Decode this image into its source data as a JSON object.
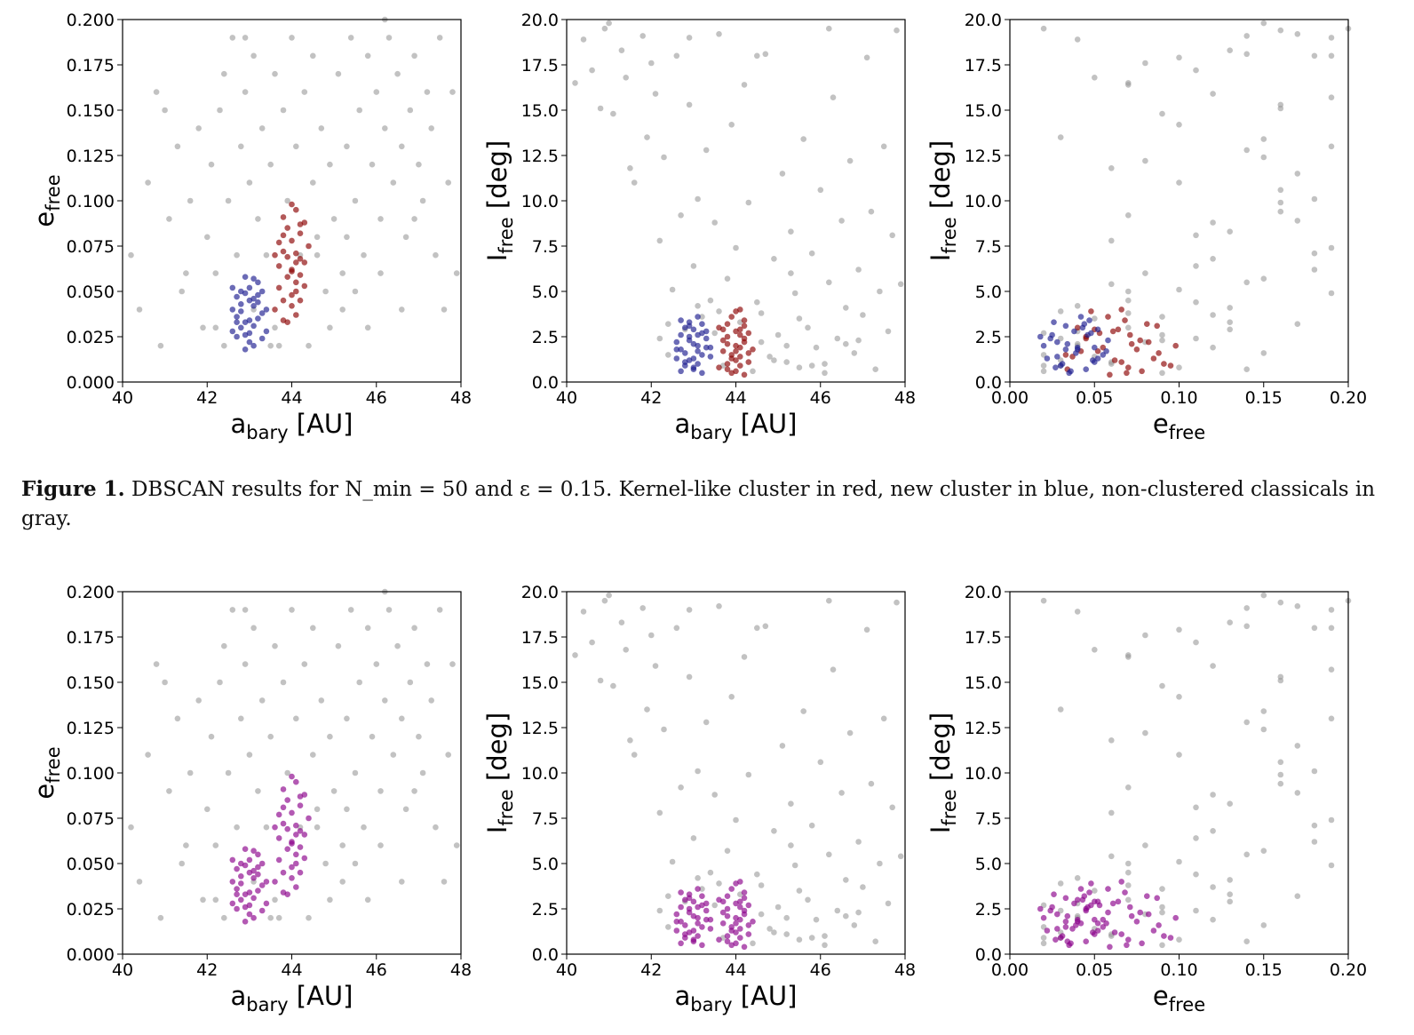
{
  "caption": {
    "label": "Figure 1.",
    "text": "DBSCAN results for N_min = 50 and ε = 0.15. Kernel-like cluster in red, new cluster in blue, non-clustered classicals in gray."
  },
  "colors": {
    "gray": "#9a9a9a",
    "kernel": "#8b0000",
    "new": "#1c1c8f",
    "combined": "#8b008b"
  },
  "chart_data": {
    "type": "scatter",
    "grid": false,
    "variables": {
      "a": "a_bary [AU]",
      "e": "e_free",
      "i": "I_free [deg]"
    },
    "panels": [
      {
        "row": "top",
        "x": "a",
        "y": "e",
        "xlabel": "a",
        "xsub": "bary",
        "xunit": " [AU]",
        "ylabel": "e",
        "ysub": "free",
        "yunit": "",
        "xlim": [
          40,
          48
        ],
        "ylim": [
          0,
          0.2
        ],
        "xticks": [
          "40",
          "42",
          "44",
          "46",
          "48"
        ],
        "yticks": [
          "0.000",
          "0.025",
          "0.050",
          "0.075",
          "0.100",
          "0.125",
          "0.150",
          "0.175",
          "0.200"
        ]
      },
      {
        "row": "top",
        "x": "a",
        "y": "i",
        "xlabel": "a",
        "xsub": "bary",
        "xunit": " [AU]",
        "ylabel": "I",
        "ysub": "free",
        "yunit": " [deg]",
        "xlim": [
          40,
          48
        ],
        "ylim": [
          0,
          20
        ],
        "xticks": [
          "40",
          "42",
          "44",
          "46",
          "48"
        ],
        "yticks": [
          "0.0",
          "2.5",
          "5.0",
          "7.5",
          "10.0",
          "12.5",
          "15.0",
          "17.5",
          "20.0"
        ]
      },
      {
        "row": "top",
        "x": "e",
        "y": "i",
        "xlabel": "e",
        "xsub": "free",
        "xunit": "",
        "ylabel": "I",
        "ysub": "free",
        "yunit": " [deg]",
        "xlim": [
          0,
          0.2
        ],
        "ylim": [
          0,
          20
        ],
        "xticks": [
          "0.00",
          "0.05",
          "0.10",
          "0.15",
          "0.20"
        ],
        "yticks": [
          "0.0",
          "2.5",
          "5.0",
          "7.5",
          "10.0",
          "12.5",
          "15.0",
          "17.5",
          "20.0"
        ]
      },
      {
        "row": "bottom",
        "x": "a",
        "y": "e",
        "xlabel": "a",
        "xsub": "bary",
        "xunit": " [AU]",
        "ylabel": "e",
        "ysub": "free",
        "yunit": "",
        "xlim": [
          40,
          48
        ],
        "ylim": [
          0,
          0.2
        ],
        "xticks": [
          "40",
          "42",
          "44",
          "46",
          "48"
        ],
        "yticks": [
          "0.000",
          "0.025",
          "0.050",
          "0.075",
          "0.100",
          "0.125",
          "0.150",
          "0.175",
          "0.200"
        ]
      },
      {
        "row": "bottom",
        "x": "a",
        "y": "i",
        "xlabel": "a",
        "xsub": "bary",
        "xunit": " [AU]",
        "ylabel": "I",
        "ysub": "free",
        "yunit": " [deg]",
        "xlim": [
          40,
          48
        ],
        "ylim": [
          0,
          20
        ],
        "xticks": [
          "40",
          "42",
          "44",
          "46",
          "48"
        ],
        "yticks": [
          "0.0",
          "2.5",
          "5.0",
          "7.5",
          "10.0",
          "12.5",
          "15.0",
          "17.5",
          "20.0"
        ]
      },
      {
        "row": "bottom",
        "x": "e",
        "y": "i",
        "xlabel": "e",
        "xsub": "free",
        "xunit": "",
        "ylabel": "I",
        "ysub": "free",
        "yunit": " [deg]",
        "xlim": [
          0,
          0.2
        ],
        "ylim": [
          0,
          20
        ],
        "xticks": [
          "0.00",
          "0.05",
          "0.10",
          "0.15",
          "0.20"
        ],
        "yticks": [
          "0.0",
          "2.5",
          "5.0",
          "7.5",
          "10.0",
          "12.5",
          "15.0",
          "17.5",
          "20.0"
        ]
      }
    ],
    "object_fields": [
      "a",
      "e",
      "i",
      "cluster"
    ],
    "clusters": [
      "none",
      "kernel",
      "new"
    ],
    "objects": [
      [
        40.2,
        0.07,
        16.5,
        0
      ],
      [
        40.4,
        0.04,
        18.9,
        0
      ],
      [
        40.6,
        0.11,
        17.2,
        0
      ],
      [
        40.8,
        0.16,
        15.1,
        0
      ],
      [
        40.9,
        0.02,
        19.5,
        0
      ],
      [
        41.1,
        0.09,
        14.8,
        0
      ],
      [
        41.3,
        0.13,
        18.3,
        0
      ],
      [
        41.4,
        0.05,
        16.8,
        0
      ],
      [
        41.6,
        0.1,
        11.0,
        0
      ],
      [
        41.8,
        0.14,
        19.1,
        0
      ],
      [
        41.9,
        0.03,
        13.5,
        0
      ],
      [
        42.0,
        0.08,
        17.6,
        0
      ],
      [
        42.1,
        0.12,
        15.9,
        0
      ],
      [
        42.2,
        0.06,
        7.8,
        0
      ],
      [
        42.3,
        0.15,
        12.4,
        0
      ],
      [
        42.4,
        0.17,
        3.2,
        0
      ],
      [
        42.5,
        0.1,
        5.1,
        0
      ],
      [
        42.6,
        0.19,
        18.0,
        0
      ],
      [
        42.7,
        0.07,
        9.2,
        0
      ],
      [
        42.8,
        0.13,
        2.9,
        0
      ],
      [
        42.9,
        0.16,
        15.3,
        0
      ],
      [
        43.0,
        0.11,
        6.4,
        0
      ],
      [
        43.1,
        0.18,
        10.1,
        0
      ],
      [
        43.2,
        0.09,
        3.6,
        0
      ],
      [
        43.3,
        0.14,
        12.8,
        0
      ],
      [
        43.4,
        0.07,
        4.5,
        0
      ],
      [
        43.5,
        0.12,
        8.8,
        0
      ],
      [
        43.6,
        0.17,
        19.2,
        0
      ],
      [
        43.7,
        0.02,
        0.9,
        0
      ],
      [
        43.8,
        0.15,
        5.7,
        0
      ],
      [
        43.9,
        0.1,
        14.2,
        0
      ],
      [
        44.0,
        0.19,
        7.4,
        0
      ],
      [
        44.1,
        0.13,
        3.3,
        0
      ],
      [
        44.2,
        0.07,
        16.4,
        0
      ],
      [
        44.3,
        0.16,
        9.9,
        0
      ],
      [
        44.4,
        0.02,
        0.6,
        0
      ],
      [
        44.5,
        0.11,
        4.4,
        0
      ],
      [
        44.6,
        0.08,
        2.2,
        0
      ],
      [
        44.7,
        0.14,
        18.1,
        0
      ],
      [
        44.8,
        0.05,
        1.4,
        0
      ],
      [
        44.9,
        0.12,
        6.8,
        0
      ],
      [
        45.0,
        0.09,
        2.6,
        0
      ],
      [
        45.1,
        0.17,
        11.5,
        0
      ],
      [
        45.2,
        0.06,
        1.1,
        0
      ],
      [
        45.3,
        0.13,
        8.3,
        0
      ],
      [
        45.4,
        0.19,
        4.9,
        0
      ],
      [
        45.5,
        0.1,
        0.8,
        0
      ],
      [
        45.6,
        0.15,
        13.4,
        0
      ],
      [
        45.7,
        0.07,
        3.0,
        0
      ],
      [
        45.8,
        0.18,
        7.1,
        0
      ],
      [
        45.9,
        0.12,
        1.9,
        0
      ],
      [
        46.0,
        0.16,
        10.6,
        0
      ],
      [
        46.1,
        0.09,
        0.5,
        0
      ],
      [
        46.2,
        0.14,
        5.5,
        0
      ],
      [
        46.3,
        0.19,
        15.7,
        0
      ],
      [
        46.4,
        0.11,
        2.4,
        0
      ],
      [
        46.5,
        0.17,
        8.9,
        0
      ],
      [
        46.6,
        0.13,
        4.1,
        0
      ],
      [
        46.7,
        0.08,
        12.2,
        0
      ],
      [
        46.8,
        0.15,
        1.6,
        0
      ],
      [
        46.9,
        0.18,
        6.2,
        0
      ],
      [
        47.0,
        0.12,
        3.7,
        0
      ],
      [
        47.1,
        0.1,
        17.9,
        0
      ],
      [
        47.2,
        0.16,
        9.4,
        0
      ],
      [
        47.3,
        0.14,
        0.7,
        0
      ],
      [
        47.4,
        0.07,
        5.0,
        0
      ],
      [
        47.5,
        0.19,
        13.0,
        0
      ],
      [
        47.6,
        0.04,
        2.8,
        0
      ],
      [
        47.8,
        0.16,
        19.4,
        0
      ],
      [
        47.9,
        0.06,
        5.4,
        0
      ],
      [
        45.2,
        0.04,
        2.0,
        0
      ],
      [
        44.9,
        0.03,
        1.2,
        0
      ],
      [
        45.5,
        0.05,
        3.5,
        0
      ],
      [
        46.1,
        0.06,
        1.0,
        0
      ],
      [
        42.2,
        0.03,
        2.4,
        0
      ],
      [
        42.4,
        0.02,
        1.5,
        0
      ],
      [
        43.6,
        0.03,
        3.9,
        0
      ],
      [
        43.5,
        0.02,
        2.7,
        0
      ],
      [
        45.8,
        0.03,
        0.9,
        0
      ],
      [
        46.6,
        0.04,
        2.1,
        0
      ],
      [
        41.0,
        0.15,
        19.8,
        0
      ],
      [
        42.9,
        0.19,
        19.0,
        0
      ],
      [
        44.5,
        0.18,
        18.0,
        0
      ],
      [
        46.2,
        0.2,
        19.5,
        0
      ],
      [
        43.1,
        0.04,
        4.2,
        0
      ],
      [
        44.6,
        0.07,
        3.8,
        0
      ],
      [
        45.3,
        0.08,
        6.0,
        0
      ],
      [
        46.9,
        0.09,
        2.3,
        0
      ],
      [
        47.7,
        0.11,
        8.1,
        0
      ],
      [
        41.5,
        0.06,
        11.8,
        0
      ],
      [
        43.8,
        0.072,
        2.1,
        1
      ],
      [
        43.9,
        0.085,
        1.3,
        1
      ],
      [
        44.0,
        0.061,
        2.8,
        1
      ],
      [
        44.1,
        0.095,
        0.9,
        1
      ],
      [
        44.2,
        0.068,
        3.4,
        1
      ],
      [
        43.7,
        0.052,
        1.7,
        1
      ],
      [
        43.8,
        0.045,
        2.5,
        1
      ],
      [
        44.0,
        0.078,
        0.6,
        1
      ],
      [
        44.1,
        0.055,
        1.9,
        1
      ],
      [
        44.2,
        0.082,
        2.2,
        1
      ],
      [
        44.3,
        0.066,
        1.1,
        1
      ],
      [
        43.6,
        0.04,
        3.0,
        1
      ],
      [
        43.9,
        0.033,
        1.5,
        1
      ],
      [
        44.0,
        0.048,
        3.9,
        1
      ],
      [
        44.1,
        0.071,
        2.6,
        1
      ],
      [
        44.2,
        0.059,
        0.4,
        1
      ],
      [
        44.3,
        0.088,
        1.6,
        1
      ],
      [
        43.7,
        0.064,
        2.9,
        1
      ],
      [
        43.8,
        0.091,
        1.0,
        1
      ],
      [
        44.0,
        0.098,
        2.0,
        1
      ],
      [
        44.1,
        0.037,
        1.4,
        1
      ],
      [
        43.9,
        0.058,
        3.6,
        1
      ],
      [
        44.2,
        0.045,
        2.4,
        1
      ],
      [
        44.4,
        0.075,
        1.8,
        1
      ],
      [
        43.6,
        0.07,
        0.8,
        1
      ],
      [
        44.0,
        0.062,
        1.2,
        1
      ],
      [
        43.8,
        0.081,
        3.2,
        1
      ],
      [
        44.1,
        0.05,
        2.9,
        1
      ],
      [
        43.9,
        0.069,
        0.5,
        1
      ],
      [
        44.3,
        0.053,
        2.7,
        1
      ],
      [
        44.0,
        0.042,
        1.7,
        1
      ],
      [
        43.7,
        0.077,
        2.3,
        1
      ],
      [
        44.2,
        0.087,
        3.1,
        1
      ],
      [
        43.8,
        0.034,
        0.7,
        1
      ],
      [
        44.1,
        0.066,
        4.0,
        1
      ],
      [
        42.6,
        0.04,
        1.8,
        2
      ],
      [
        42.7,
        0.025,
        2.6,
        2
      ],
      [
        42.8,
        0.05,
        1.1,
        2
      ],
      [
        42.9,
        0.033,
        3.1,
        2
      ],
      [
        43.0,
        0.045,
        0.7,
        2
      ],
      [
        43.1,
        0.02,
        2.0,
        2
      ],
      [
        43.2,
        0.055,
        1.5,
        2
      ],
      [
        43.3,
        0.038,
        2.8,
        2
      ],
      [
        42.7,
        0.047,
        3.4,
        2
      ],
      [
        42.8,
        0.03,
        0.9,
        2
      ],
      [
        42.9,
        0.058,
        2.3,
        2
      ],
      [
        43.0,
        0.022,
        1.3,
        2
      ],
      [
        43.1,
        0.042,
        3.6,
        2
      ],
      [
        43.2,
        0.035,
        0.5,
        2
      ],
      [
        43.3,
        0.05,
        1.9,
        2
      ],
      [
        42.6,
        0.028,
        2.2,
        2
      ],
      [
        42.8,
        0.039,
        1.6,
        2
      ],
      [
        42.9,
        0.018,
        2.5,
        2
      ],
      [
        43.0,
        0.052,
        2.9,
        2
      ],
      [
        43.1,
        0.031,
        1.0,
        2
      ],
      [
        43.2,
        0.044,
        3.2,
        2
      ],
      [
        43.4,
        0.028,
        1.4,
        2
      ],
      [
        42.7,
        0.036,
        0.6,
        2
      ],
      [
        42.9,
        0.049,
        1.2,
        2
      ],
      [
        43.0,
        0.034,
        2.1,
        2
      ],
      [
        43.1,
        0.057,
        1.7,
        2
      ],
      [
        43.3,
        0.024,
        2.4,
        2
      ],
      [
        42.8,
        0.043,
        3.0,
        2
      ],
      [
        43.0,
        0.027,
        0.8,
        2
      ],
      [
        43.2,
        0.048,
        2.7,
        2
      ],
      [
        42.6,
        0.052,
        1.3,
        2
      ],
      [
        43.4,
        0.04,
        1.9,
        2
      ],
      [
        42.9,
        0.026,
        3.3,
        2
      ],
      [
        43.1,
        0.046,
        2.6,
        2
      ],
      [
        42.7,
        0.033,
        1.8,
        2
      ]
    ]
  }
}
